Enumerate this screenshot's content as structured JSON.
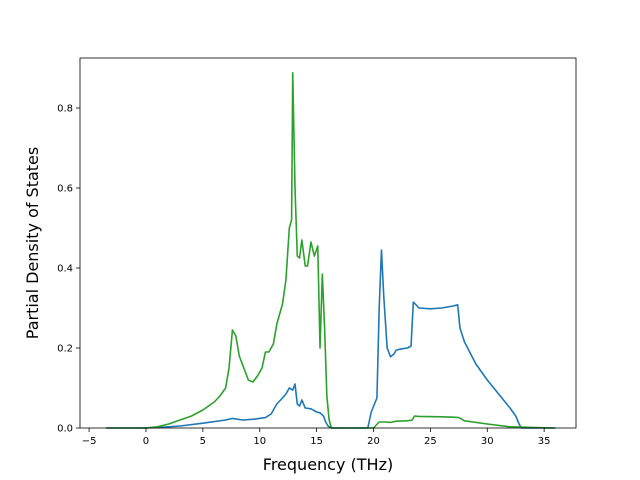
{
  "chart_data": {
    "type": "line",
    "title": "",
    "xlabel": "Frequency (THz)",
    "ylabel": "Partial Density of States",
    "xlim": [
      -5.8,
      37.8
    ],
    "ylim": [
      0.0,
      0.925
    ],
    "grid": false,
    "legend": "none",
    "xticks": [
      -5,
      0,
      5,
      10,
      15,
      20,
      25,
      30,
      35
    ],
    "yticks": [
      0.0,
      0.2,
      0.4,
      0.6,
      0.8
    ],
    "xtick_labels": [
      "−5",
      "0",
      "5",
      "10",
      "15",
      "20",
      "25",
      "30",
      "35"
    ],
    "ytick_labels": [
      "0.0",
      "0.2",
      "0.4",
      "0.6",
      "0.8"
    ],
    "series": [
      {
        "color": "#1f77b4",
        "x": [
          -3.5,
          0,
          1,
          3,
          5,
          7,
          7.6,
          8.5,
          9.5,
          10.5,
          11,
          11.5,
          12,
          12.3,
          12.6,
          12.9,
          13.1,
          13.3,
          13.5,
          13.7,
          14,
          14.5,
          15,
          15.3,
          15.6,
          15.8,
          16,
          16.3,
          19.5,
          19.8,
          20.3,
          20.5,
          20.7,
          20.9,
          21.2,
          21.5,
          21.8,
          22,
          22.5,
          23,
          23.3,
          23.5,
          24,
          25,
          26,
          27,
          27.4,
          27.6,
          28,
          29,
          30,
          31,
          32,
          32.5,
          32.8,
          33,
          36
        ],
        "y": [
          0.0,
          0.0,
          0.001,
          0.005,
          0.012,
          0.02,
          0.024,
          0.02,
          0.022,
          0.026,
          0.035,
          0.06,
          0.075,
          0.085,
          0.1,
          0.095,
          0.11,
          0.06,
          0.055,
          0.07,
          0.05,
          0.048,
          0.04,
          0.038,
          0.03,
          0.015,
          0.005,
          0.0,
          0.0,
          0.04,
          0.075,
          0.3,
          0.445,
          0.33,
          0.2,
          0.178,
          0.185,
          0.195,
          0.198,
          0.2,
          0.205,
          0.315,
          0.3,
          0.298,
          0.3,
          0.305,
          0.308,
          0.25,
          0.215,
          0.16,
          0.12,
          0.085,
          0.05,
          0.03,
          0.01,
          0.0,
          0.0
        ]
      },
      {
        "color": "#2ca02c",
        "x": [
          -3.5,
          0,
          1,
          2,
          3,
          4,
          5,
          6,
          6.5,
          7,
          7.3,
          7.6,
          7.9,
          8.2,
          8.6,
          9,
          9.4,
          9.8,
          10.2,
          10.5,
          10.8,
          11.2,
          11.5,
          12,
          12.3,
          12.6,
          12.8,
          12.9,
          13.1,
          13.3,
          13.5,
          13.7,
          14,
          14.2,
          14.5,
          14.8,
          15.1,
          15.3,
          15.5,
          15.7,
          15.9,
          16.1,
          16.3,
          19,
          20,
          20.5,
          21,
          21.5,
          22,
          23,
          23.4,
          23.6,
          24,
          26,
          27,
          27.5,
          28,
          30,
          32,
          35.8
        ],
        "y": [
          0.0,
          0.0,
          0.003,
          0.01,
          0.02,
          0.03,
          0.045,
          0.065,
          0.08,
          0.1,
          0.15,
          0.245,
          0.23,
          0.18,
          0.15,
          0.12,
          0.115,
          0.13,
          0.15,
          0.19,
          0.19,
          0.21,
          0.26,
          0.31,
          0.37,
          0.5,
          0.52,
          0.888,
          0.6,
          0.43,
          0.425,
          0.47,
          0.405,
          0.405,
          0.465,
          0.43,
          0.455,
          0.2,
          0.385,
          0.25,
          0.08,
          0.02,
          0.0,
          0.0,
          0.0,
          0.015,
          0.015,
          0.014,
          0.017,
          0.018,
          0.02,
          0.03,
          0.029,
          0.028,
          0.027,
          0.026,
          0.018,
          0.01,
          0.003,
          0.0
        ]
      }
    ]
  }
}
